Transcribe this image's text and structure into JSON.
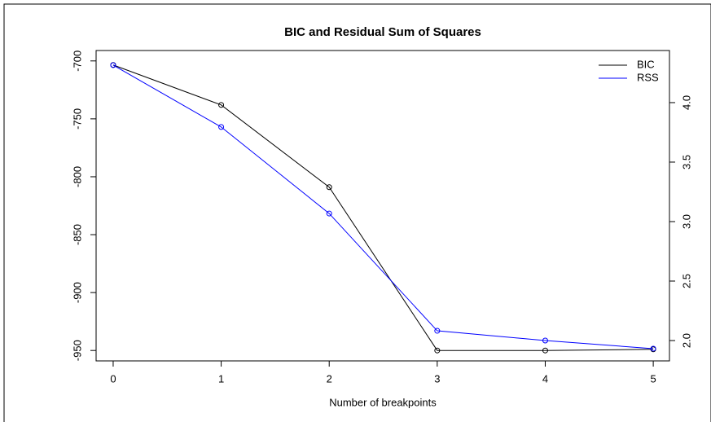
{
  "chart_data": {
    "type": "line",
    "title": "BIC and Residual Sum of Squares",
    "x_label": "Number of breakpoints",
    "x": [
      0,
      1,
      2,
      3,
      4,
      5
    ],
    "xlim": [
      -0.158,
      5.15
    ],
    "xticks": [
      0,
      1,
      2,
      3,
      4,
      5
    ],
    "ylim": [
      -959,
      -691
    ],
    "yticks": [
      -700,
      -750,
      -800,
      -850,
      -900,
      -950
    ],
    "y2lim": [
      1.829,
      4.438
    ],
    "y2ticks": [
      {
        "value": 4,
        "label": "4.0"
      },
      {
        "value": 3.5,
        "label": "3.5"
      },
      {
        "value": 3,
        "label": "3.0"
      },
      {
        "value": 2.5,
        "label": "2.5"
      },
      {
        "value": 2,
        "label": "2.0"
      }
    ],
    "legend": "top-right",
    "series": [
      {
        "name": "BIC",
        "color": "#000000",
        "values": [
          -703.5,
          -738,
          -809,
          -950,
          -950,
          -949
        ]
      },
      {
        "name": "RSS",
        "color": "#0000ff",
        "axis": "y2",
        "values": [
          4.315,
          3.795,
          3.068,
          2.082,
          2.0,
          1.932
        ]
      }
    ]
  }
}
